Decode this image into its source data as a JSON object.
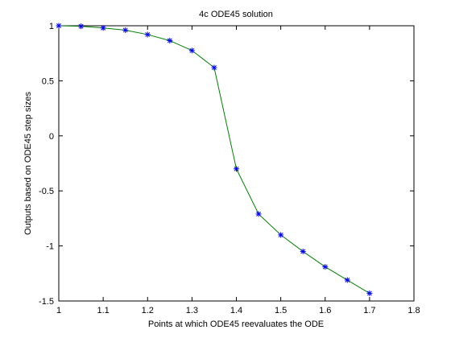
{
  "chart_data": {
    "type": "line",
    "title": "4c ODE45 solution",
    "xlabel": "Points at which ODE45 reevaluates the ODE",
    "ylabel": "Outputs based on ODE45 step sizes",
    "xlim": [
      1,
      1.8
    ],
    "ylim": [
      -1.5,
      1
    ],
    "xticks": [
      "1",
      "1.1",
      "1.2",
      "1.3",
      "1.4",
      "1.5",
      "1.6",
      "1.7",
      "1.8"
    ],
    "yticks": [
      "1",
      "0.5",
      "0",
      "-0.5",
      "-1",
      "-1.5"
    ],
    "grid": false,
    "line_color": "#008000",
    "marker_color": "#0000ff",
    "marker": "asterisk",
    "x": [
      1.0,
      1.05,
      1.1,
      1.15,
      1.2,
      1.25,
      1.3,
      1.35,
      1.4,
      1.45,
      1.5,
      1.55,
      1.6,
      1.65,
      1.7
    ],
    "y": [
      1.0,
      0.995,
      0.98,
      0.96,
      0.92,
      0.865,
      0.775,
      0.62,
      -0.3,
      -0.71,
      -0.9,
      -1.05,
      -1.19,
      -1.31,
      -1.43
    ]
  }
}
